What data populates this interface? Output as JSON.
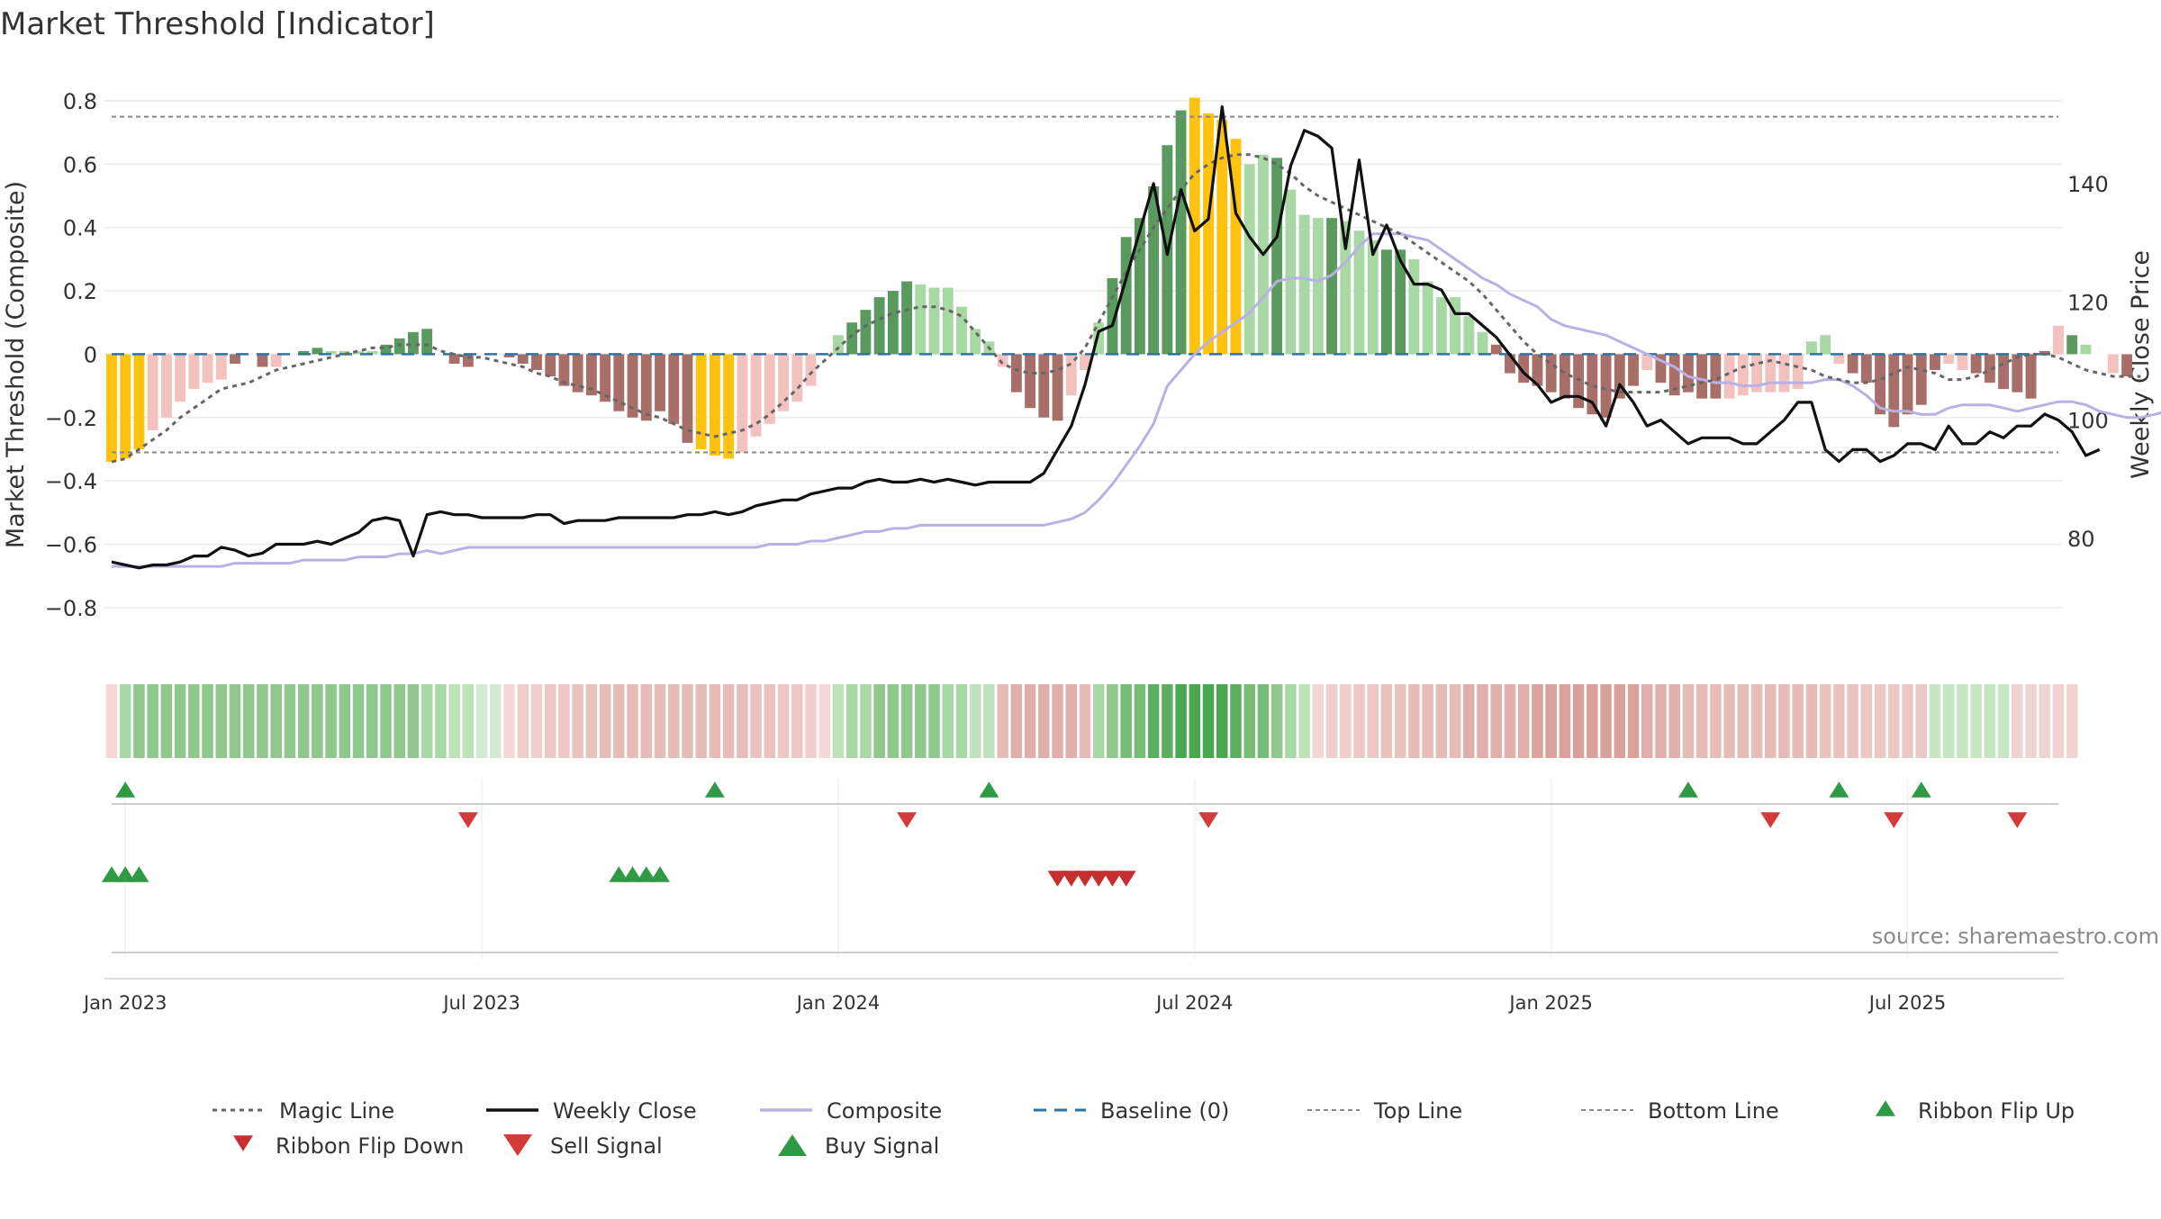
{
  "title": "Market Threshold [Indicator]",
  "source": "source: sharemaestro.com",
  "colors": {
    "weekly_close": "#111111",
    "composite": "#b9b1e3",
    "magic_line": "#666666",
    "baseline": "#1f77b4",
    "threshold_line": "#888888",
    "bar_extreme": "#ffc20e",
    "bar_pos_strong": "#5a9a5e",
    "bar_pos_weak": "#a8d8a4",
    "bar_neg_strong": "#a86f6a",
    "bar_neg_weak": "#f4c2be",
    "buy": "#2e9a43",
    "sell": "#d33a3a",
    "ribbon_up": "#2e9a43",
    "ribbon_down": "#c62f2f"
  },
  "chart_data": {
    "type": "bar",
    "ylabel_left": "Market Threshold (Composite)",
    "ylabel_right": "Weekly Close Price",
    "ylim_left": [
      -0.88,
      0.8
    ],
    "ylim_right": [
      64,
      154
    ],
    "yticks_left": [
      "0.8",
      "0.6",
      "0.4",
      "0.2",
      "0",
      "−0.2",
      "−0.4",
      "−0.6",
      "−0.8"
    ],
    "yticks_left_values": [
      0.8,
      0.6,
      0.4,
      0.2,
      0,
      -0.2,
      -0.4,
      -0.6,
      -0.8
    ],
    "yticks_right": [
      "140",
      "120",
      "100",
      "80"
    ],
    "yticks_right_values": [
      140,
      120,
      100,
      80
    ],
    "top_line": 0.75,
    "bottom_line": -0.31,
    "x_ticks": [
      "Jan 2023",
      "Jul 2023",
      "Jan 2024",
      "Jul 2024",
      "Jan 2025",
      "Jul 2025"
    ],
    "x_tick_weeks": [
      1,
      27,
      53,
      79,
      105,
      131
    ],
    "weeks": 143,
    "bars": [
      -0.34,
      -0.33,
      -0.3,
      -0.24,
      -0.2,
      -0.15,
      -0.11,
      -0.09,
      -0.08,
      -0.03,
      0.0,
      -0.04,
      -0.04,
      0.0,
      0.01,
      0.02,
      0.01,
      0.01,
      0.01,
      0.01,
      0.03,
      0.05,
      0.07,
      0.08,
      0.0,
      -0.03,
      -0.04,
      0.0,
      0.0,
      -0.01,
      -0.03,
      -0.05,
      -0.07,
      -0.1,
      -0.12,
      -0.13,
      -0.15,
      -0.18,
      -0.2,
      -0.21,
      -0.18,
      -0.22,
      -0.28,
      -0.3,
      -0.32,
      -0.33,
      -0.31,
      -0.26,
      -0.22,
      -0.18,
      -0.15,
      -0.1,
      0.0,
      0.06,
      0.1,
      0.14,
      0.18,
      0.2,
      0.23,
      0.22,
      0.21,
      0.21,
      0.15,
      0.08,
      0.04,
      -0.04,
      -0.12,
      -0.17,
      -0.2,
      -0.21,
      -0.13,
      -0.05,
      0.1,
      0.24,
      0.37,
      0.43,
      0.53,
      0.66,
      0.77,
      0.81,
      0.76,
      0.74,
      0.68,
      0.6,
      0.63,
      0.62,
      0.52,
      0.44,
      0.43,
      0.43,
      0.42,
      0.39,
      0.36,
      0.33,
      0.33,
      0.3,
      0.23,
      0.18,
      0.18,
      0.12,
      0.07,
      0.03,
      -0.06,
      -0.09,
      -0.1,
      -0.12,
      -0.14,
      -0.17,
      -0.19,
      -0.2,
      -0.14,
      -0.1,
      -0.05,
      -0.09,
      -0.13,
      -0.12,
      -0.14,
      -0.14,
      -0.14,
      -0.13,
      -0.12,
      -0.12,
      -0.12,
      -0.11,
      0.04,
      0.06,
      -0.03,
      -0.06,
      -0.09,
      -0.19,
      -0.23,
      -0.19,
      -0.16,
      -0.05,
      -0.03,
      -0.05,
      -0.06,
      -0.09,
      -0.11,
      -0.12,
      -0.14,
      0.01,
      0.09,
      0.06,
      0.03,
      0.0,
      -0.06,
      -0.07
    ],
    "bar_styles": [
      "y",
      "y",
      "y",
      "nw",
      "nw",
      "nw",
      "nw",
      "nw",
      "nw",
      "ns",
      "n",
      "ns",
      "nw",
      "n",
      "ps",
      "ps",
      "pw",
      "pw",
      "pw",
      "pw",
      "ps",
      "ps",
      "ps",
      "ps",
      "n",
      "ns",
      "ns",
      "n",
      "n",
      "ns",
      "ns",
      "ns",
      "ns",
      "ns",
      "ns",
      "ns",
      "ns",
      "ns",
      "ns",
      "ns",
      "ns",
      "ns",
      "ns",
      "y",
      "y",
      "y",
      "nw",
      "nw",
      "nw",
      "nw",
      "nw",
      "nw",
      "n",
      "pw",
      "ps",
      "ps",
      "ps",
      "ps",
      "ps",
      "pw",
      "pw",
      "pw",
      "pw",
      "pw",
      "pw",
      "nw",
      "ns",
      "ns",
      "ns",
      "ns",
      "nw",
      "nw",
      "pw",
      "ps",
      "ps",
      "ps",
      "ps",
      "ps",
      "ps",
      "y",
      "y",
      "y",
      "y",
      "pw",
      "pw",
      "ps",
      "pw",
      "pw",
      "pw",
      "ps",
      "pw",
      "pw",
      "pw",
      "ps",
      "ps",
      "pw",
      "pw",
      "pw",
      "pw",
      "pw",
      "pw",
      "ns",
      "ns",
      "ns",
      "ns",
      "ns",
      "ns",
      "ns",
      "ns",
      "ns",
      "ns",
      "ns",
      "nw",
      "ns",
      "ns",
      "ns",
      "ns",
      "ns",
      "nw",
      "nw",
      "nw",
      "nw",
      "nw",
      "nw",
      "pw",
      "pw",
      "nw",
      "ns",
      "ns",
      "ns",
      "ns",
      "ns",
      "ns",
      "ns",
      "nw",
      "nw",
      "ns",
      "ns",
      "ns",
      "ns",
      "ns",
      "ns",
      "n",
      "ps",
      "pw",
      "pw",
      "n",
      "ns",
      "ns"
    ],
    "composite": [
      -0.67,
      -0.67,
      -0.67,
      -0.67,
      -0.67,
      -0.67,
      -0.67,
      -0.67,
      -0.67,
      -0.66,
      -0.66,
      -0.66,
      -0.66,
      -0.66,
      -0.65,
      -0.65,
      -0.65,
      -0.65,
      -0.64,
      -0.64,
      -0.64,
      -0.63,
      -0.63,
      -0.62,
      -0.63,
      -0.62,
      -0.61,
      -0.61,
      -0.61,
      -0.61,
      -0.61,
      -0.61,
      -0.61,
      -0.61,
      -0.61,
      -0.61,
      -0.61,
      -0.61,
      -0.61,
      -0.61,
      -0.61,
      -0.61,
      -0.61,
      -0.61,
      -0.61,
      -0.61,
      -0.61,
      -0.61,
      -0.6,
      -0.6,
      -0.6,
      -0.59,
      -0.59,
      -0.58,
      -0.57,
      -0.56,
      -0.56,
      -0.55,
      -0.55,
      -0.54,
      -0.54,
      -0.54,
      -0.54,
      -0.54,
      -0.54,
      -0.54,
      -0.54,
      -0.54,
      -0.54,
      -0.53,
      -0.52,
      -0.5,
      -0.46,
      -0.41,
      -0.35,
      -0.29,
      -0.22,
      -0.1,
      -0.05,
      0.0,
      0.04,
      0.07,
      0.1,
      0.13,
      0.18,
      0.23,
      0.24,
      0.24,
      0.23,
      0.25,
      0.29,
      0.34,
      0.38,
      0.38,
      0.38,
      0.37,
      0.36,
      0.33,
      0.3,
      0.27,
      0.24,
      0.22,
      0.19,
      0.17,
      0.15,
      0.11,
      0.09,
      0.08,
      0.07,
      0.06,
      0.04,
      0.02,
      0.0,
      -0.02,
      -0.04,
      -0.07,
      -0.08,
      -0.09,
      -0.09,
      -0.1,
      -0.1,
      -0.09,
      -0.09,
      -0.09,
      -0.09,
      -0.08,
      -0.08,
      -0.1,
      -0.13,
      -0.17,
      -0.18,
      -0.18,
      -0.19,
      -0.19,
      -0.17,
      -0.16,
      -0.16,
      -0.16,
      -0.17,
      -0.18,
      -0.17,
      -0.16,
      -0.15,
      -0.15,
      -0.16,
      -0.18,
      -0.19,
      -0.2,
      -0.2,
      -0.19,
      -0.18
    ],
    "magic_line": [
      -0.34,
      -0.33,
      -0.3,
      -0.27,
      -0.24,
      -0.2,
      -0.17,
      -0.14,
      -0.11,
      -0.1,
      -0.09,
      -0.07,
      -0.05,
      -0.04,
      -0.03,
      -0.02,
      -0.01,
      0.0,
      0.01,
      0.02,
      0.02,
      0.03,
      0.03,
      0.03,
      0.01,
      0.0,
      -0.01,
      -0.01,
      -0.02,
      -0.03,
      -0.04,
      -0.06,
      -0.07,
      -0.09,
      -0.1,
      -0.11,
      -0.13,
      -0.15,
      -0.17,
      -0.19,
      -0.2,
      -0.22,
      -0.24,
      -0.25,
      -0.26,
      -0.25,
      -0.24,
      -0.22,
      -0.19,
      -0.15,
      -0.11,
      -0.06,
      -0.02,
      0.02,
      0.06,
      0.09,
      0.11,
      0.13,
      0.14,
      0.15,
      0.15,
      0.14,
      0.12,
      0.07,
      0.02,
      -0.03,
      -0.05,
      -0.06,
      -0.06,
      -0.05,
      -0.03,
      0.02,
      0.1,
      0.18,
      0.26,
      0.33,
      0.4,
      0.46,
      0.52,
      0.57,
      0.6,
      0.62,
      0.63,
      0.63,
      0.62,
      0.6,
      0.57,
      0.53,
      0.5,
      0.48,
      0.46,
      0.44,
      0.42,
      0.4,
      0.38,
      0.35,
      0.32,
      0.29,
      0.26,
      0.23,
      0.19,
      0.14,
      0.09,
      0.04,
      0.0,
      -0.03,
      -0.06,
      -0.08,
      -0.1,
      -0.11,
      -0.12,
      -0.12,
      -0.12,
      -0.12,
      -0.11,
      -0.1,
      -0.09,
      -0.08,
      -0.06,
      -0.04,
      -0.03,
      -0.02,
      -0.03,
      -0.04,
      -0.05,
      -0.07,
      -0.08,
      -0.09,
      -0.09,
      -0.08,
      -0.06,
      -0.04,
      -0.05,
      -0.06,
      -0.08,
      -0.08,
      -0.07,
      -0.05,
      -0.03,
      -0.01,
      0.0,
      0.0,
      -0.01,
      -0.03,
      -0.05,
      -0.06,
      -0.07,
      -0.07,
      -0.07
    ],
    "weekly_close": [
      76,
      75.5,
      75,
      75.5,
      75.5,
      76,
      77,
      77,
      78.5,
      78,
      77,
      77.5,
      79,
      79,
      79,
      79.5,
      79,
      80,
      81,
      83,
      83.5,
      83,
      77,
      84,
      84.5,
      84,
      84,
      83.5,
      83.5,
      83.5,
      83.5,
      84,
      84,
      82.5,
      83,
      83,
      83,
      83.5,
      83.5,
      83.5,
      83.5,
      83.5,
      84,
      84,
      84.5,
      84,
      84.5,
      85.5,
      86,
      86.5,
      86.5,
      87.5,
      88,
      88.5,
      88.5,
      89.5,
      90,
      89.5,
      89.5,
      90,
      89.5,
      90,
      89.5,
      89,
      89.5,
      89.5,
      89.5,
      89.5,
      91,
      95,
      99,
      106,
      115,
      116,
      124,
      132,
      140,
      128,
      139,
      132,
      134,
      153,
      135,
      131,
      128,
      131,
      143,
      149,
      148,
      146,
      129,
      144,
      128,
      133,
      127,
      123,
      123,
      122,
      118,
      118,
      116,
      114,
      111,
      108,
      106,
      103,
      104,
      104,
      103,
      99,
      106,
      103,
      99,
      100,
      98,
      96,
      97,
      97,
      97,
      96,
      96,
      98,
      100,
      103,
      103,
      95,
      93,
      95,
      95,
      93,
      94,
      96,
      96,
      95,
      99,
      96,
      96,
      98,
      97,
      99,
      99,
      101,
      100,
      98,
      94,
      95
    ],
    "ribbon_colors": [
      "#f3d6d5",
      "#a8d8a4",
      "#8fc78d",
      "#8fc78d",
      "#8fc78d",
      "#8fc78d",
      "#8fc78d",
      "#8fc78d",
      "#8fc78d",
      "#8fc78d",
      "#8fc78d",
      "#8fc78d",
      "#8fc78d",
      "#8fc78d",
      "#8fc78d",
      "#8fc78d",
      "#8fc78d",
      "#8fc78d",
      "#8fc78d",
      "#8fc78d",
      "#8fc78d",
      "#8fc78d",
      "#8fc78d",
      "#a8d8a4",
      "#a8d8a4",
      "#bfe2bb",
      "#bfe2bb",
      "#d2ebd0",
      "#d2ebd0",
      "#f3d6d5",
      "#f0cecb",
      "#f0cecb",
      "#ecc7c4",
      "#ecc7c4",
      "#e9c1bd",
      "#e9c1bd",
      "#e6bcb8",
      "#e6bcb8",
      "#e6bcb8",
      "#e6bcb8",
      "#e6bcb8",
      "#e6bcb8",
      "#e6bcb8",
      "#e6bcb8",
      "#e6bcb8",
      "#e6bcb8",
      "#e6bcb8",
      "#e9c1bd",
      "#e9c1bd",
      "#ecc7c4",
      "#ecc7c4",
      "#f0cecb",
      "#f3d6d5",
      "#bfe2bb",
      "#a8d8a4",
      "#a8d8a4",
      "#8fc78d",
      "#8fc78d",
      "#8fc78d",
      "#8fc78d",
      "#8fc78d",
      "#a8d8a4",
      "#a8d8a4",
      "#bfe2bb",
      "#bfe2bb",
      "#e6bcb8",
      "#e0afab",
      "#e0afab",
      "#e0afab",
      "#e0afab",
      "#e0afab",
      "#e6bcb8",
      "#a8d8a4",
      "#8fc78d",
      "#76bb76",
      "#76bb76",
      "#5eae62",
      "#5eae62",
      "#49a752",
      "#49a752",
      "#49a752",
      "#49a752",
      "#5eae62",
      "#76bb76",
      "#76bb76",
      "#8fc78d",
      "#a8d8a4",
      "#bfe2bb",
      "#f3d6d5",
      "#f0cecb",
      "#f0cecb",
      "#ecc7c4",
      "#ecc7c4",
      "#e9c1bd",
      "#e9c1bd",
      "#e6bcb8",
      "#e6bcb8",
      "#e6bcb8",
      "#e6bcb8",
      "#e0afab",
      "#e0afab",
      "#e0afab",
      "#e0afab",
      "#e0afab",
      "#d9a19c",
      "#d9a19c",
      "#d9a19c",
      "#d9a19c",
      "#d9a19c",
      "#d9a19c",
      "#d9a19c",
      "#d9a19c",
      "#e0afab",
      "#e0afab",
      "#e0afab",
      "#e6bcb8",
      "#e6bcb8",
      "#e6bcb8",
      "#e6bcb8",
      "#e6bcb8",
      "#e6bcb8",
      "#e6bcb8",
      "#e6bcb8",
      "#e6bcb8",
      "#e6bcb8",
      "#e9c1bd",
      "#e9c1bd",
      "#e9c1bd",
      "#ecc7c4",
      "#ecc7c4",
      "#ecc7c4",
      "#ecc7c4",
      "#ecc7c4",
      "#c6e5c3",
      "#c6e5c3",
      "#c6e5c3",
      "#c6e5c3",
      "#c6e5c3",
      "#c6e5c3",
      "#efd3d1",
      "#efd3d1",
      "#efd3d1",
      "#efd3d1",
      "#efd3d1"
    ],
    "buy_signals_weeks": [
      1,
      44,
      64,
      115,
      126,
      132
    ],
    "sell_signals_weeks": [
      26,
      58,
      80,
      121,
      130,
      139
    ],
    "ribbon_flip_up_weeks": [
      0,
      1,
      2,
      37,
      38,
      39,
      40
    ],
    "ribbon_flip_down_weeks": [
      69,
      70,
      71,
      72,
      73,
      74
    ],
    "legend": [
      {
        "key": "magic",
        "label": "Magic Line"
      },
      {
        "key": "close",
        "label": "Weekly Close"
      },
      {
        "key": "composite",
        "label": "Composite"
      },
      {
        "key": "baseline",
        "label": "Baseline (0)"
      },
      {
        "key": "top",
        "label": "Top Line"
      },
      {
        "key": "bottom",
        "label": "Bottom Line"
      },
      {
        "key": "flipup",
        "label": "Ribbon Flip Up"
      },
      {
        "key": "flipdown",
        "label": "Ribbon Flip Down"
      },
      {
        "key": "sell",
        "label": "Sell Signal"
      },
      {
        "key": "buy",
        "label": "Buy Signal"
      }
    ],
    "legend_placement": "bottom",
    "grid": true
  }
}
